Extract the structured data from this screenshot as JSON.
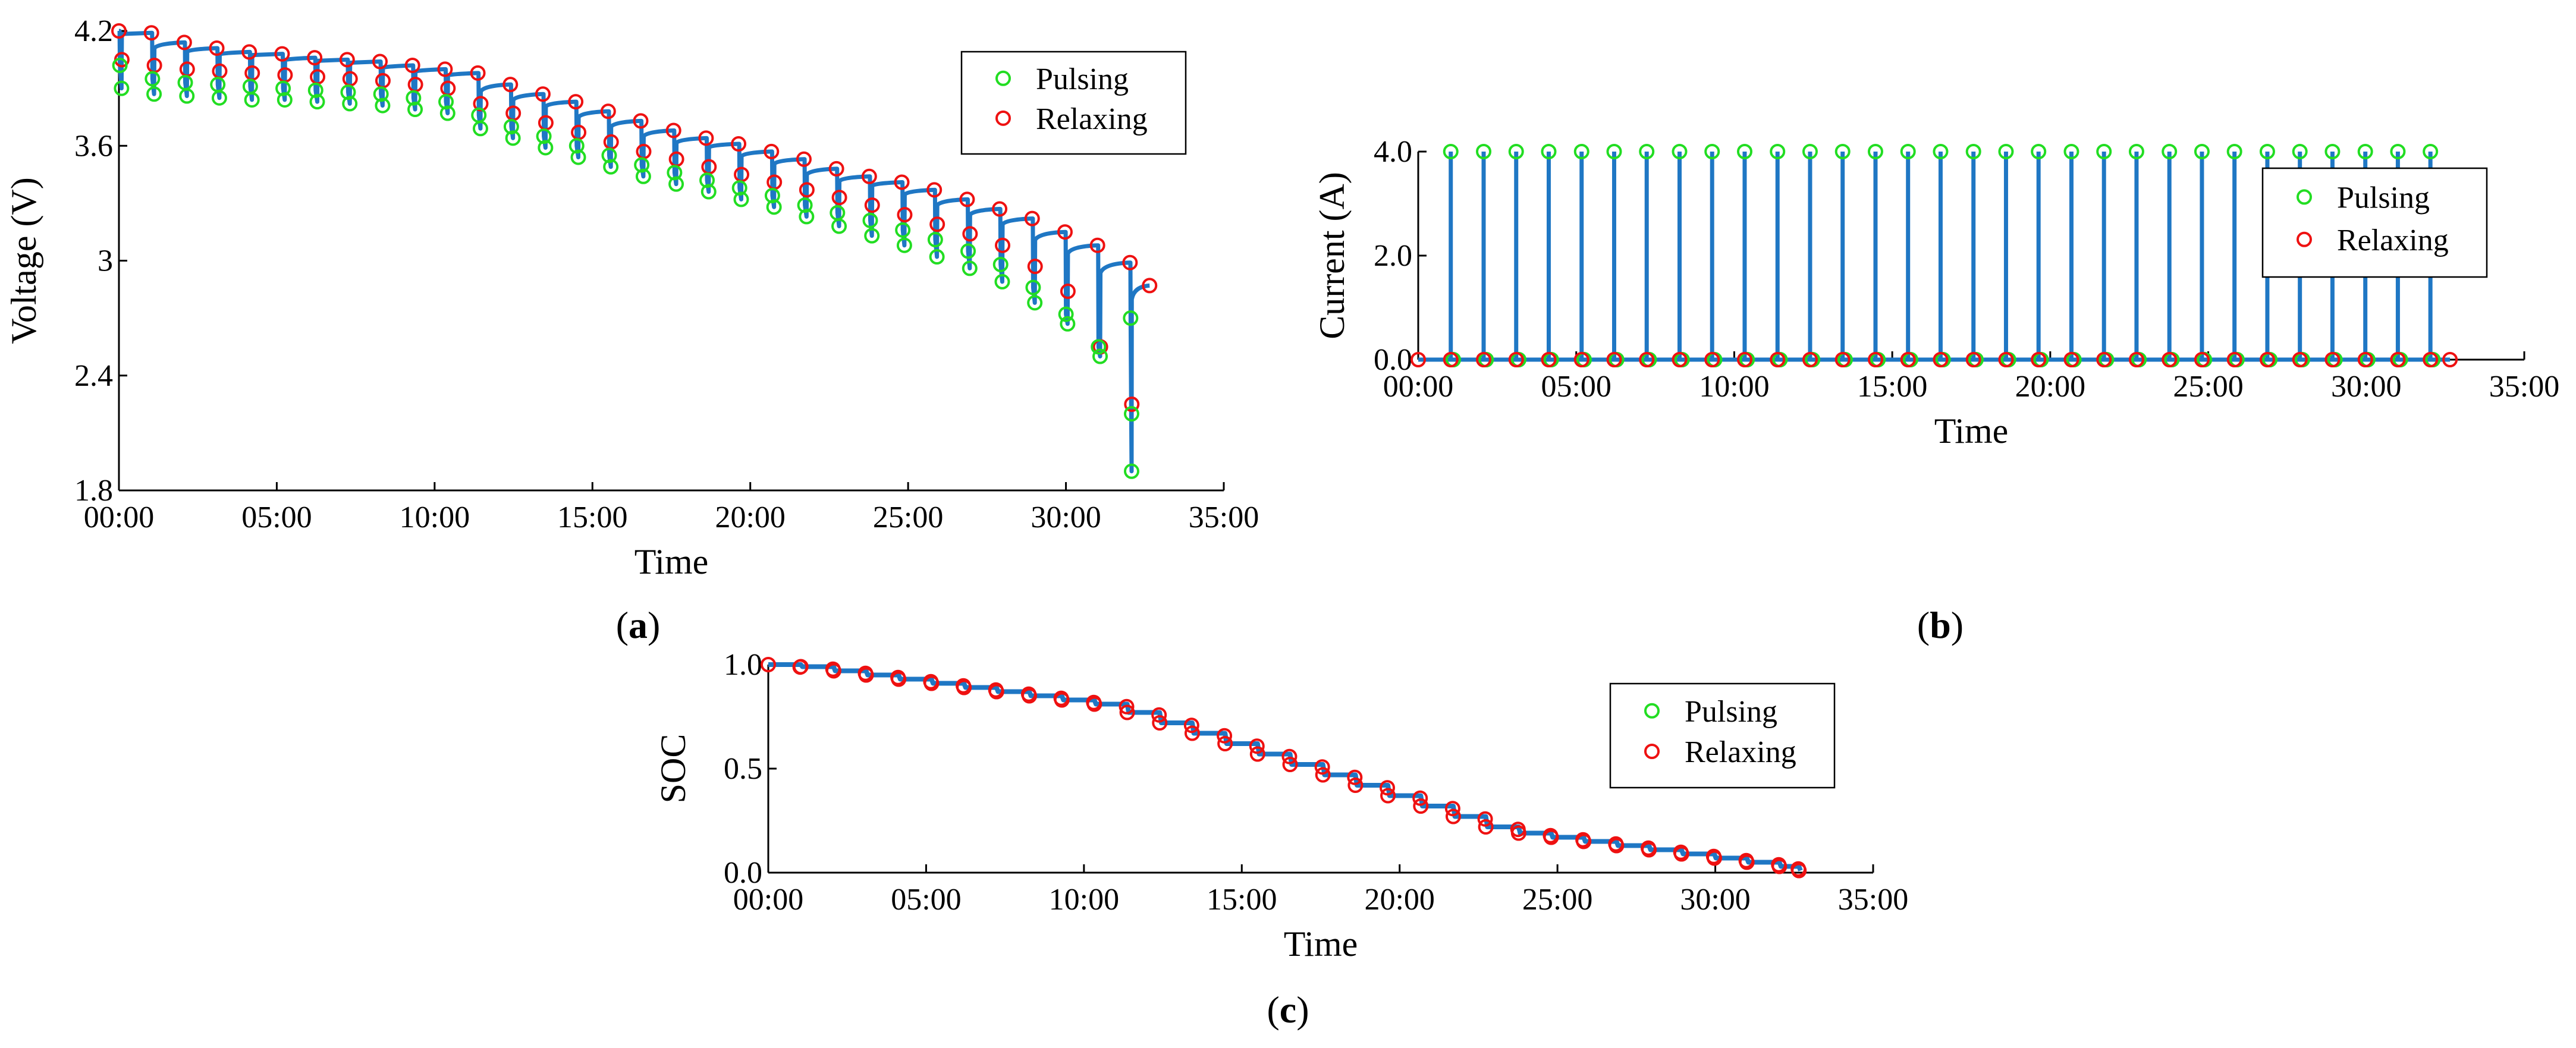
{
  "panels": [
    {
      "label_open": "(",
      "label_letter": "a",
      "label_close": ")"
    },
    {
      "label_open": "(",
      "label_letter": "b",
      "label_close": ")"
    },
    {
      "label_open": "(",
      "label_letter": "c",
      "label_close": ")"
    }
  ],
  "chart_data": [
    {
      "type": "line",
      "xlabel": "Time",
      "ylabel": "Voltage (V)",
      "xlim_minutes": [
        0,
        35
      ],
      "ylim": [
        1.8,
        4.2
      ],
      "xticks": [
        "00:00",
        "05:00",
        "10:00",
        "15:00",
        "20:00",
        "25:00",
        "30:00",
        "35:00"
      ],
      "yticks": [
        "1.8",
        "2.4",
        "3",
        "3.6",
        "4.2"
      ],
      "ytick_values": [
        1.8,
        2.4,
        3.0,
        3.6,
        4.2
      ],
      "legend": [
        "Pulsing",
        "Relaxing"
      ],
      "legend_position": "top-right",
      "line_color": "#1f77c4",
      "pulse_times_minutes": [
        0,
        1.03,
        2.07,
        3.1,
        4.13,
        5.17,
        6.2,
        7.23,
        8.27,
        9.3,
        10.33,
        11.37,
        12.4,
        13.43,
        14.47,
        15.5,
        16.53,
        17.57,
        18.6,
        19.63,
        20.67,
        21.7,
        22.73,
        23.77,
        24.8,
        25.83,
        26.87,
        27.9,
        28.93,
        29.97,
        31.0,
        32.03,
        32.65
      ],
      "relax_values": [
        4.2,
        4.19,
        4.14,
        4.11,
        4.09,
        4.08,
        4.06,
        4.05,
        4.04,
        4.02,
        4.0,
        3.98,
        3.92,
        3.87,
        3.83,
        3.78,
        3.73,
        3.68,
        3.64,
        3.61,
        3.57,
        3.53,
        3.48,
        3.44,
        3.41,
        3.37,
        3.32,
        3.27,
        3.22,
        3.15,
        3.08,
        2.99,
        2.87
      ],
      "relax_after_drop": [
        4.05,
        4.02,
        4.0,
        3.99,
        3.98,
        3.97,
        3.96,
        3.95,
        3.94,
        3.92,
        3.9,
        3.82,
        3.77,
        3.72,
        3.67,
        3.62,
        3.57,
        3.53,
        3.49,
        3.45,
        3.41,
        3.37,
        3.33,
        3.29,
        3.24,
        3.19,
        3.14,
        3.08,
        2.97,
        2.84,
        2.55,
        2.25
      ],
      "pulse_values_upper": [
        4.02,
        3.95,
        3.93,
        3.92,
        3.91,
        3.9,
        3.89,
        3.88,
        3.87,
        3.85,
        3.83,
        3.76,
        3.7,
        3.65,
        3.6,
        3.55,
        3.5,
        3.46,
        3.42,
        3.38,
        3.34,
        3.29,
        3.25,
        3.21,
        3.16,
        3.11,
        3.05,
        2.98,
        2.86,
        2.72,
        2.55,
        2.7
      ],
      "pulse_values_lower": [
        3.9,
        3.87,
        3.86,
        3.85,
        3.84,
        3.84,
        3.83,
        3.82,
        3.81,
        3.79,
        3.77,
        3.69,
        3.64,
        3.59,
        3.54,
        3.49,
        3.44,
        3.4,
        3.36,
        3.32,
        3.28,
        3.23,
        3.18,
        3.13,
        3.08,
        3.02,
        2.96,
        2.89,
        2.78,
        2.67,
        2.5,
        2.2
      ],
      "end_value": 1.9
    },
    {
      "type": "line",
      "xlabel": "Time",
      "ylabel": "Current (A)",
      "xlim_minutes": [
        0,
        35
      ],
      "ylim": [
        0,
        4.0
      ],
      "xticks": [
        "00:00",
        "05:00",
        "10:00",
        "15:00",
        "20:00",
        "25:00",
        "30:00",
        "35:00"
      ],
      "yticks": [
        "0.0",
        "2.0",
        "4.0"
      ],
      "ytick_values": [
        0,
        2,
        4
      ],
      "legend": [
        "Pulsing",
        "Relaxing"
      ],
      "legend_position": "right",
      "line_color": "#1f77c4",
      "pulse_current": 4.0,
      "relax_current": 0.0,
      "pulse_times_minutes": [
        1.03,
        2.07,
        3.1,
        4.13,
        5.17,
        6.2,
        7.23,
        8.27,
        9.3,
        10.33,
        11.37,
        12.4,
        13.43,
        14.47,
        15.5,
        16.53,
        17.57,
        18.6,
        19.63,
        20.67,
        21.7,
        22.73,
        23.77,
        24.8,
        25.83,
        26.87,
        27.9,
        28.93,
        29.97,
        31.0,
        32.03
      ],
      "relax_times_minutes": [
        0,
        1.03,
        2.07,
        3.1,
        4.13,
        5.17,
        6.2,
        7.23,
        8.27,
        9.3,
        10.33,
        11.37,
        12.4,
        13.43,
        14.47,
        15.5,
        16.53,
        17.57,
        18.6,
        19.63,
        20.67,
        21.7,
        22.73,
        23.77,
        24.8,
        25.83,
        26.87,
        27.9,
        28.93,
        29.97,
        31.0,
        32.03,
        32.65
      ]
    },
    {
      "type": "line",
      "xlabel": "Time",
      "ylabel": "SOC",
      "xlim_minutes": [
        0,
        35
      ],
      "ylim": [
        0,
        1.0
      ],
      "xticks": [
        "00:00",
        "05:00",
        "10:00",
        "15:00",
        "20:00",
        "25:00",
        "30:00",
        "35:00"
      ],
      "yticks": [
        "0.0",
        "0.5",
        "1.0"
      ],
      "ytick_values": [
        0,
        0.5,
        1.0
      ],
      "legend": [
        "Pulsing",
        "Relaxing"
      ],
      "legend_position": "top-right",
      "line_color": "#1f77c4",
      "times_minutes": [
        0,
        1.03,
        2.07,
        3.1,
        4.13,
        5.17,
        6.2,
        7.23,
        8.27,
        9.3,
        10.33,
        11.37,
        12.4,
        13.43,
        14.47,
        15.5,
        16.53,
        17.57,
        18.6,
        19.63,
        20.67,
        21.7,
        22.73,
        23.77,
        24.8,
        25.83,
        26.87,
        27.9,
        28.93,
        29.97,
        31.0,
        32.03,
        32.65
      ],
      "soc_values": [
        1.0,
        0.99,
        0.97,
        0.95,
        0.93,
        0.91,
        0.89,
        0.87,
        0.85,
        0.83,
        0.81,
        0.77,
        0.72,
        0.67,
        0.62,
        0.57,
        0.52,
        0.47,
        0.42,
        0.37,
        0.32,
        0.27,
        0.22,
        0.19,
        0.17,
        0.15,
        0.13,
        0.11,
        0.09,
        0.07,
        0.05,
        0.03,
        0.01
      ]
    }
  ]
}
